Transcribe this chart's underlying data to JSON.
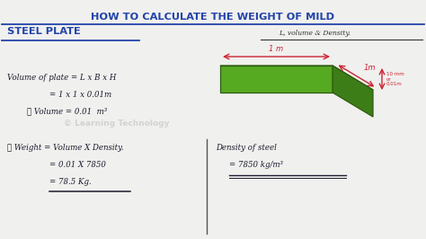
{
  "bg_color": "#f0f0ee",
  "title_line1": "HOW TO CALCULATE THE WEIGHT OF MILD",
  "title_line2": "STEEL PLATE",
  "title_color": "#2244aa",
  "subtitle": "L, volume & Density.",
  "subtitle_color": "#333333",
  "watermark": "© Learning Technology",
  "vol_line1": "Volume of plate = L x B x H",
  "vol_line2": "= 1 x 1 x 0.01m",
  "vol_line3": "∴ Volume = 0.01  m³",
  "wt_line1": "∴ Weight = Volume X Density.",
  "wt_line2": "= 0.01 X 7850",
  "wt_line3": "= 78.5 Kg.",
  "density_title": "Density of steel",
  "density_value": "= 7850 kg/m³",
  "box_top_color": "#66bb33",
  "box_front_color": "#55aa22",
  "box_side_color": "#3d7d18",
  "dim_color": "#cc2233",
  "text_color": "#1a1a2e",
  "divider_color": "#555555"
}
